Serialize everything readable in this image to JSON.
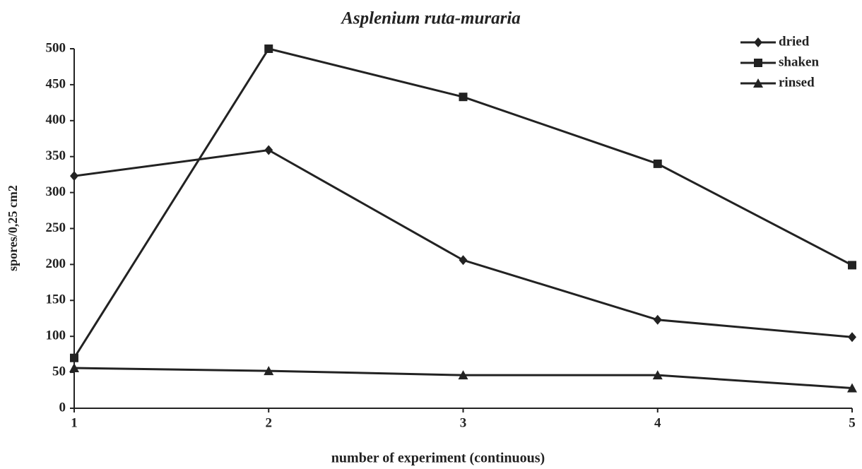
{
  "chart_data": {
    "type": "line",
    "title": "Asplenium ruta-muraria",
    "x_label": "number of experiment (continuous)",
    "y_label": "spores/0,25 cm2",
    "x": [
      1,
      2,
      3,
      4,
      5
    ],
    "series": [
      {
        "name": "dried",
        "color": "#222222",
        "marker": "diamond",
        "values": [
          323,
          359,
          206,
          123,
          99
        ]
      },
      {
        "name": "shaken",
        "color": "#222222",
        "marker": "square",
        "values": [
          70,
          500,
          433,
          340,
          199
        ]
      },
      {
        "name": "rinsed",
        "color": "#222222",
        "marker": "triangle",
        "values": [
          56,
          52,
          46,
          46,
          28
        ]
      }
    ],
    "xlim": [
      1,
      5
    ],
    "xticks": [
      1,
      2,
      3,
      4,
      5
    ],
    "ylim": [
      0,
      500
    ],
    "yticks": [
      0,
      50,
      100,
      150,
      200,
      250,
      300,
      350,
      400,
      450,
      500
    ],
    "grid": false,
    "legend": "upper right"
  }
}
